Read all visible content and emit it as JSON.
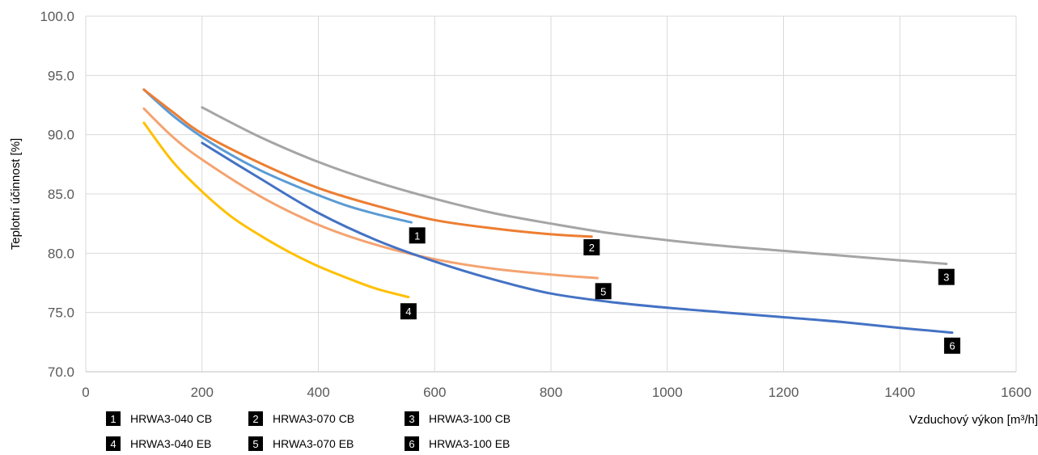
{
  "chart_data": {
    "type": "line",
    "xlabel": "Vzduchový výkon [m³/h]",
    "ylabel": "Teplotní účinnost [%]",
    "xlim": [
      0,
      1600
    ],
    "ylim": [
      70,
      100
    ],
    "x_ticks": [
      "0",
      "200",
      "400",
      "600",
      "800",
      "1000",
      "1200",
      "1400",
      "1600"
    ],
    "y_ticks": [
      "70.0",
      "75.0",
      "80.0",
      "85.0",
      "90.0",
      "95.0",
      "100.0"
    ],
    "grid": true,
    "legend_position": "bottom-left",
    "series": [
      {
        "tag": "1",
        "name": "HRWA3-040 CB",
        "color": "#5b9bd5",
        "points": [
          [
            100,
            93.8
          ],
          [
            150,
            91.6
          ],
          [
            200,
            89.8
          ],
          [
            250,
            88.3
          ],
          [
            300,
            87.0
          ],
          [
            350,
            85.9
          ],
          [
            400,
            84.9
          ],
          [
            450,
            84.0
          ],
          [
            500,
            83.3
          ],
          [
            560,
            82.6
          ]
        ],
        "label_at": [
          570,
          81.5
        ]
      },
      {
        "tag": "2",
        "name": "HRWA3-070 CB",
        "color": "#ed7d31",
        "points": [
          [
            100,
            93.8
          ],
          [
            150,
            91.9
          ],
          [
            200,
            90.1
          ],
          [
            300,
            87.6
          ],
          [
            400,
            85.5
          ],
          [
            500,
            84.0
          ],
          [
            600,
            82.8
          ],
          [
            700,
            82.1
          ],
          [
            800,
            81.6
          ],
          [
            870,
            81.4
          ]
        ],
        "label_at": [
          870,
          80.5
        ]
      },
      {
        "tag": "3",
        "name": "HRWA3-100 CB",
        "color": "#a5a5a5",
        "points": [
          [
            200,
            92.3
          ],
          [
            300,
            89.8
          ],
          [
            400,
            87.7
          ],
          [
            500,
            86.0
          ],
          [
            600,
            84.6
          ],
          [
            700,
            83.4
          ],
          [
            800,
            82.5
          ],
          [
            900,
            81.7
          ],
          [
            1000,
            81.1
          ],
          [
            1100,
            80.6
          ],
          [
            1200,
            80.2
          ],
          [
            1300,
            79.8
          ],
          [
            1400,
            79.4
          ],
          [
            1480,
            79.1
          ]
        ],
        "label_at": [
          1480,
          78.0
        ]
      },
      {
        "tag": "4",
        "name": "HRWA3-040 EB",
        "color": "#ffc000",
        "points": [
          [
            100,
            91.0
          ],
          [
            150,
            87.7
          ],
          [
            200,
            85.2
          ],
          [
            250,
            83.1
          ],
          [
            300,
            81.5
          ],
          [
            350,
            80.1
          ],
          [
            400,
            78.9
          ],
          [
            450,
            77.9
          ],
          [
            500,
            77.0
          ],
          [
            555,
            76.3
          ]
        ],
        "label_at": [
          555,
          75.1
        ]
      },
      {
        "tag": "5",
        "name": "HRWA3-070 EB",
        "color": "#f4a370",
        "points": [
          [
            100,
            92.2
          ],
          [
            150,
            89.8
          ],
          [
            200,
            87.9
          ],
          [
            300,
            84.8
          ],
          [
            400,
            82.4
          ],
          [
            500,
            80.7
          ],
          [
            600,
            79.5
          ],
          [
            700,
            78.7
          ],
          [
            800,
            78.2
          ],
          [
            880,
            77.9
          ]
        ],
        "label_at": [
          890,
          76.8
        ]
      },
      {
        "tag": "6",
        "name": "HRWA3-100 EB",
        "color": "#4472c4",
        "points": [
          [
            200,
            89.3
          ],
          [
            300,
            86.3
          ],
          [
            400,
            83.4
          ],
          [
            500,
            81.1
          ],
          [
            600,
            79.3
          ],
          [
            700,
            77.8
          ],
          [
            800,
            76.6
          ],
          [
            900,
            75.9
          ],
          [
            1000,
            75.4
          ],
          [
            1100,
            75.0
          ],
          [
            1200,
            74.6
          ],
          [
            1300,
            74.2
          ],
          [
            1400,
            73.7
          ],
          [
            1490,
            73.3
          ]
        ],
        "label_at": [
          1490,
          72.2
        ]
      }
    ]
  }
}
